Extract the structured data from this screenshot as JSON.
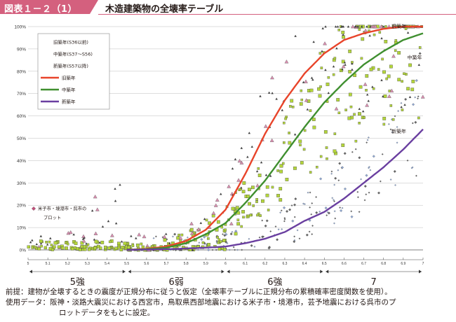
{
  "figure": {
    "label": "図表１－２（1）",
    "title": "木造建築物の全壊率テーブル"
  },
  "colors": {
    "accent": "#d4607e",
    "old": "#e8442a",
    "mid": "#3f8f2f",
    "new": "#6a3fa0",
    "old_marker": "#d98fb0",
    "mid_marker": "#b4d63a",
    "new_marker": "#8fa8d4"
  },
  "chart_data": {
    "type": "scatter",
    "title": "木造建築物の全壊率テーブル",
    "xlabel": "",
    "ylabel": "",
    "xlim": [
      5.0,
      7.0
    ],
    "ylim": [
      0,
      100
    ],
    "y_ticks": [
      "0%",
      "10%",
      "20%",
      "30%",
      "40%",
      "50%",
      "60%",
      "70%",
      "80%",
      "90%",
      "100%"
    ],
    "x_ticks": [
      "5",
      "5.1",
      "5.2",
      "5.3",
      "5.4",
      "5.5",
      "5.6",
      "5.7",
      "5.8",
      "5.9",
      "6",
      "6.1",
      "6.2",
      "6.3",
      "6.4",
      "6.5",
      "6.6",
      "6.7",
      "6.8",
      "6.9",
      "7"
    ],
    "grid": true,
    "legend": {
      "position": "top-left",
      "entries": [
        {
          "label": "旧築年(S36以前)",
          "marker": "triangle",
          "color": "#d98fb0"
        },
        {
          "label": "中築年(S37～S56)",
          "marker": "square",
          "color": "#b4d63a"
        },
        {
          "label": "新築年(S57以降)",
          "marker": "diamond",
          "color": "#8fa8d4"
        },
        {
          "label": "旧築年",
          "marker": "line",
          "color": "#e8442a"
        },
        {
          "label": "中築年",
          "marker": "line",
          "color": "#3f8f2f"
        },
        {
          "label": "新築年",
          "marker": "line",
          "color": "#6a3fa0"
        }
      ]
    },
    "extra_legend": {
      "label": "米子市・境港市・呉市の\nプロット",
      "marker": "diamond",
      "color": "#c0507a"
    },
    "curves": [
      {
        "name": "旧築年",
        "x": [
          5.5,
          5.6,
          5.7,
          5.8,
          5.9,
          6.0,
          6.1,
          6.2,
          6.3,
          6.4,
          6.5,
          6.6,
          6.7,
          6.8,
          6.9,
          7.0
        ],
        "values": [
          0,
          0.5,
          1.5,
          4,
          9,
          18,
          34,
          52,
          67,
          79,
          88,
          94,
          97,
          99,
          100,
          100
        ]
      },
      {
        "name": "中築年",
        "x": [
          5.5,
          5.6,
          5.7,
          5.8,
          5.9,
          6.0,
          6.1,
          6.2,
          6.3,
          6.4,
          6.5,
          6.6,
          6.7,
          6.8,
          6.9,
          7.0
        ],
        "values": [
          0,
          0.3,
          1,
          3,
          7,
          12,
          21,
          31,
          43,
          55,
          66,
          75,
          83,
          89,
          94,
          97
        ]
      },
      {
        "name": "新築年",
        "x": [
          5.5,
          5.7,
          5.9,
          6.0,
          6.1,
          6.2,
          6.3,
          6.4,
          6.5,
          6.6,
          6.7,
          6.8,
          6.9,
          7.0
        ],
        "values": [
          0,
          0.3,
          1,
          1.5,
          3,
          5,
          8,
          13,
          17,
          23,
          30,
          37,
          45,
          54
        ]
      }
    ],
    "curve_labels": [
      {
        "text": "旧築年",
        "x": 6.84,
        "y": 100
      },
      {
        "text": "中築年",
        "x": 6.92,
        "y": 86
      },
      {
        "text": "新築年",
        "x": 6.84,
        "y": 53
      }
    ],
    "scatter_density": {
      "旧築年": "approx. 180 points, spread around the 旧築年 curve from 5.0 to 7.0",
      "中築年": "approx. 320 points, spread around the 中築年 curve from 5.0 to 7.0",
      "新築年": "approx. 200 points, spread around the 新築年 curve from 5.6 to 7.0"
    },
    "intensity_bands": [
      {
        "label": "5強",
        "from": 5.0,
        "to": 5.5
      },
      {
        "label": "6弱",
        "from": 5.5,
        "to": 6.0
      },
      {
        "label": "6強",
        "from": 6.0,
        "to": 6.5
      },
      {
        "label": "7",
        "from": 6.5,
        "to": 7.0
      }
    ]
  },
  "notes": {
    "line1": "前提：建物が全壊するときの震度が正規分布に従うと仮定（全壊率テーブルに正規分布の累積確率密度関数を使用）。",
    "line2": "使用データ：阪神・淡路大震災における西宮市，鳥取県西部地震における米子市・境港市，芸予地震における呉市のプ",
    "line3": "ロットデータをもとに設定。"
  }
}
